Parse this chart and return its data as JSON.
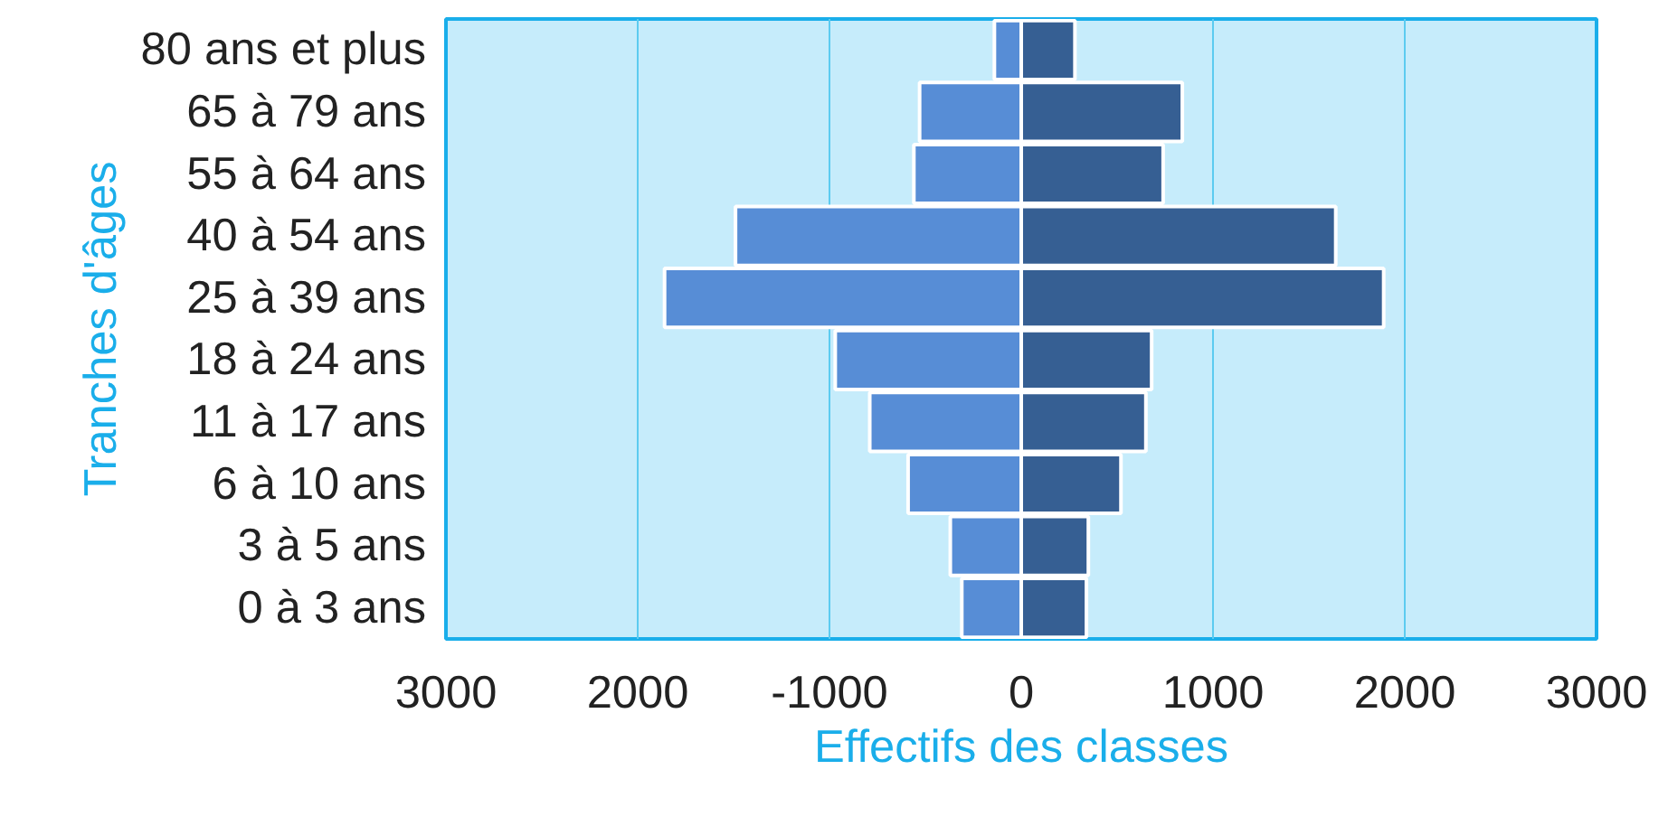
{
  "chart_data": {
    "type": "bar",
    "orientation": "horizontal",
    "stacked": true,
    "xlabel": "Effectifs des classes",
    "ylabel": "Tranches d'âges",
    "categories": [
      "80 ans et plus",
      "65 à 79 ans",
      "55 à 64 ans",
      "40 à 54 ans",
      "25 à 39 ans",
      "18 à 24 ans",
      "11 à 17 ans",
      "6 à 10 ans",
      "3 à 5 ans",
      "0 à 3 ans"
    ],
    "series": [
      {
        "color": "#578dd6",
        "values": [
          -140,
          -530,
          -560,
          -1490,
          -1860,
          -970,
          -790,
          -590,
          -370,
          -310
        ]
      },
      {
        "color": "#365f93",
        "values": [
          280,
          840,
          740,
          1640,
          1890,
          680,
          650,
          520,
          350,
          340
        ]
      }
    ],
    "xlim": [
      -3000,
      3000
    ],
    "xticks": [
      {
        "value": -3000,
        "label": "3000"
      },
      {
        "value": -2000,
        "label": "2000"
      },
      -1000,
      0,
      1000,
      2000,
      3000
    ],
    "grid": "x"
  }
}
